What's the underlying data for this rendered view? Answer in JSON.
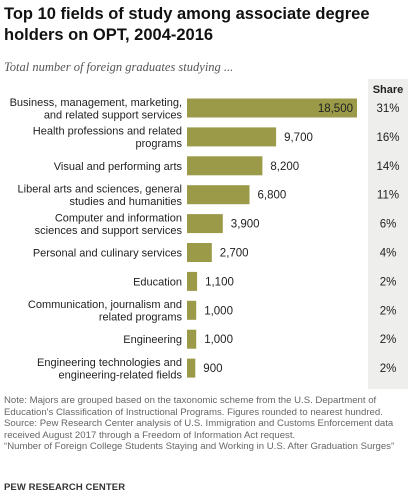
{
  "title": "Top 10 fields of study among associate degree holders on OPT, 2004-2016",
  "subtitle": "Total number of foreign graduates studying ...",
  "share_header": "Share",
  "colors": {
    "bar": "#9a9a48",
    "share_column": "#eeeeec"
  },
  "chart_data": {
    "type": "bar",
    "orientation": "horizontal",
    "categories": [
      [
        "Business, management, marketing,",
        "and related support services"
      ],
      [
        "Health professions and related",
        "programs"
      ],
      [
        "Visual and performing arts"
      ],
      [
        "Liberal arts and sciences, general",
        "studies and humanities"
      ],
      [
        "Computer and information",
        "sciences and support services"
      ],
      [
        "Personal and culinary services"
      ],
      [
        "Education"
      ],
      [
        "Communication, journalism and",
        "related programs"
      ],
      [
        "Engineering"
      ],
      [
        "Engineering technologies and",
        "engineering-related fields"
      ]
    ],
    "values": [
      18500,
      9700,
      8200,
      6800,
      3900,
      2700,
      1100,
      1000,
      1000,
      900
    ],
    "value_labels": [
      "18,500",
      "9,700",
      "8,200",
      "6,800",
      "3,900",
      "2,700",
      "1,100",
      "1,000",
      "1,000",
      "900"
    ],
    "shares": [
      "31%",
      "16%",
      "14%",
      "11%",
      "6%",
      "4%",
      "2%",
      "2%",
      "2%",
      "2%"
    ]
  },
  "note_lines": [
    "Note: Majors are grouped based on the taxonomic scheme from the U.S. Department of",
    "Education's Classification of Instructional Programs. Figures rounded to nearest hundred.",
    "Source: Pew Research Center analysis of U.S. Immigration and Customs Enforcement data",
    "received August 2017 through a Freedom of Information Act request.",
    "“Number of Foreign College Students Staying and Working in U.S. After Graduation Surges”"
  ],
  "brand": "PEW RESEARCH CENTER"
}
